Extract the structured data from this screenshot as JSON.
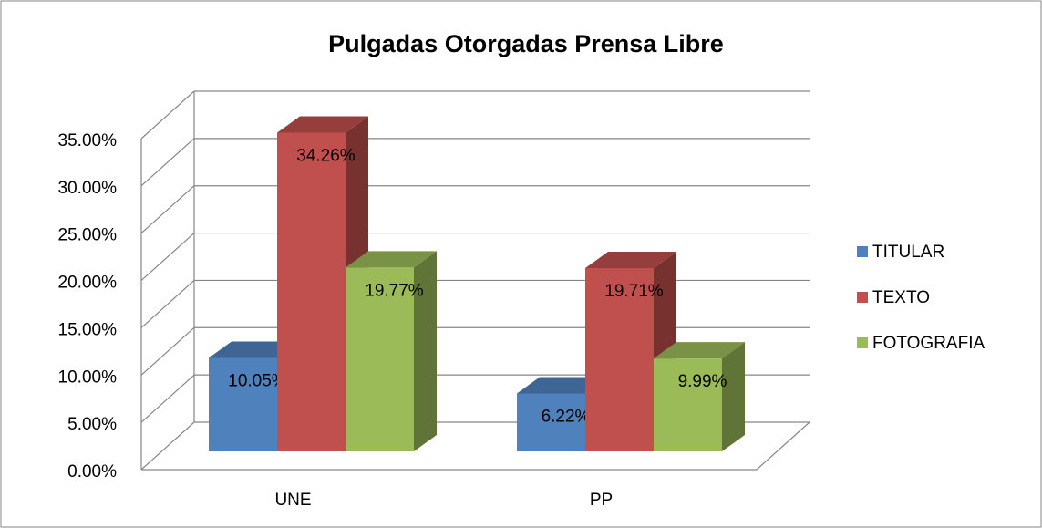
{
  "chart_data": {
    "type": "bar3d",
    "title": "Pulgadas Otorgadas Prensa Libre",
    "categories": [
      "UNE",
      "PP"
    ],
    "series": [
      {
        "name": "TITULAR",
        "color": "#4f81bd",
        "values": [
          10.05,
          6.22
        ],
        "value_labels": [
          "10.05%",
          "6.22%"
        ]
      },
      {
        "name": "TEXTO",
        "color": "#c0504d",
        "values": [
          34.26,
          19.71
        ],
        "value_labels": [
          "34.26%",
          "19.71%"
        ]
      },
      {
        "name": "FOTOGRAFIA",
        "color": "#9bbb59",
        "values": [
          19.77,
          9.99
        ],
        "value_labels": [
          "19.77%",
          "9.99%"
        ]
      }
    ],
    "ylim": [
      0,
      35
    ],
    "yticks": [
      {
        "value": 0,
        "label": "0.00%"
      },
      {
        "value": 5,
        "label": "5.00%"
      },
      {
        "value": 10,
        "label": "10.00%"
      },
      {
        "value": 15,
        "label": "15.00%"
      },
      {
        "value": 20,
        "label": "20.00%"
      },
      {
        "value": 25,
        "label": "25.00%"
      },
      {
        "value": 30,
        "label": "30.00%"
      },
      {
        "value": 35,
        "label": "35.00%"
      }
    ],
    "grid": true,
    "legend": "right"
  }
}
